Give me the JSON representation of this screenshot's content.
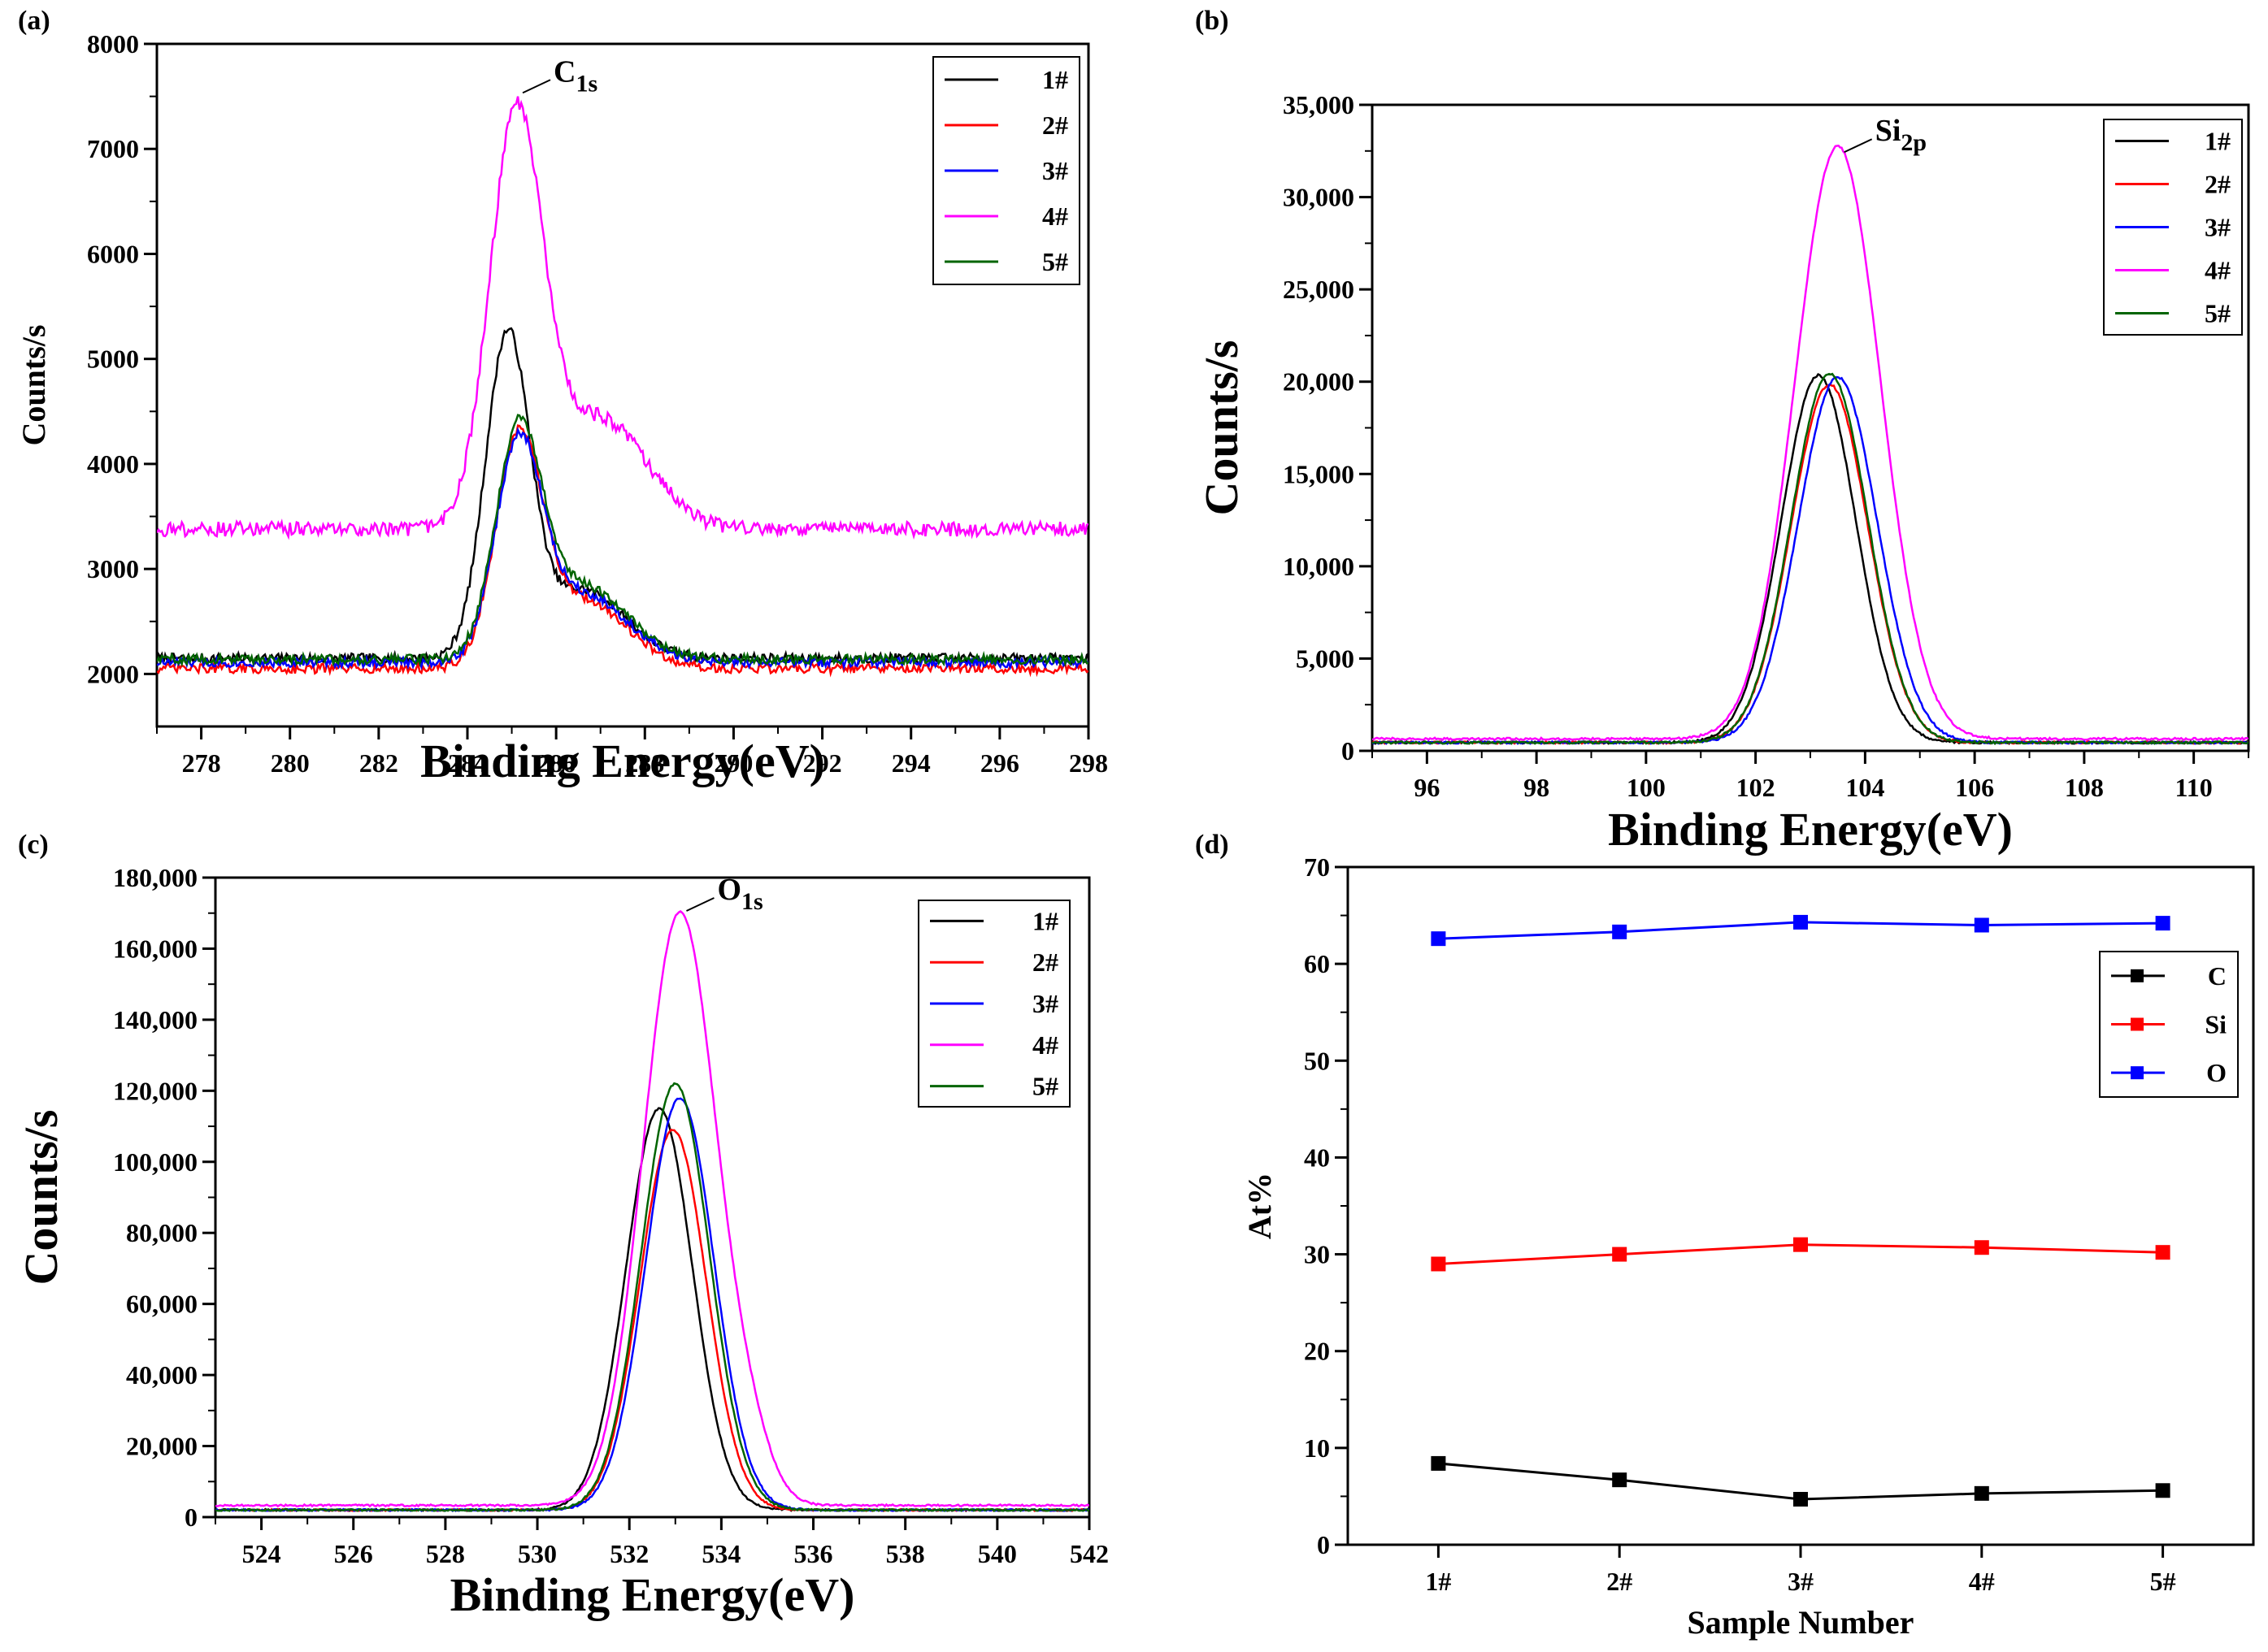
{
  "chart_data": [
    {
      "panel": "(a)",
      "type": "line",
      "xlabel": "Binding Energy(eV)",
      "ylabel": "Counts/s",
      "xlim": [
        277,
        298
      ],
      "ylim": [
        1500,
        8000
      ],
      "xticks": [
        278,
        280,
        282,
        284,
        286,
        288,
        290,
        292,
        294,
        296,
        298
      ],
      "yticks": [
        2000,
        3000,
        4000,
        5000,
        6000,
        7000,
        8000
      ],
      "ytick_labels": [
        "2000",
        "3000",
        "4000",
        "5000",
        "6000",
        "7000",
        "8000"
      ],
      "annotation": {
        "label": "C",
        "sub": "1s",
        "x": 285.1,
        "y": 7580
      },
      "series": [
        {
          "name": "1#",
          "color": "#000000",
          "baseline": 2150,
          "noise": 45,
          "peaks": [
            {
              "c": 284.9,
              "a": 3000,
              "w": 0.5
            },
            {
              "c": 286.6,
              "a": 650,
              "w": 0.95
            }
          ]
        },
        {
          "name": "2#",
          "color": "#ff0000",
          "baseline": 2050,
          "noise": 45,
          "peaks": [
            {
              "c": 285.15,
              "a": 2050,
              "w": 0.52
            },
            {
              "c": 286.6,
              "a": 650,
              "w": 1.0
            }
          ]
        },
        {
          "name": "3#",
          "color": "#0000ff",
          "baseline": 2110,
          "noise": 45,
          "peaks": [
            {
              "c": 285.15,
              "a": 1950,
              "w": 0.52
            },
            {
              "c": 286.6,
              "a": 650,
              "w": 1.0
            }
          ]
        },
        {
          "name": "4#",
          "color": "#ff00ff",
          "baseline": 3380,
          "noise": 70,
          "peaks": [
            {
              "c": 285.1,
              "a": 3850,
              "w": 0.6
            },
            {
              "c": 287.0,
              "a": 1050,
              "w": 1.05
            }
          ]
        },
        {
          "name": "5#",
          "color": "#006400",
          "baseline": 2140,
          "noise": 45,
          "peaks": [
            {
              "c": 285.15,
              "a": 2050,
              "w": 0.52
            },
            {
              "c": 286.6,
              "a": 700,
              "w": 1.0
            }
          ]
        }
      ]
    },
    {
      "panel": "(b)",
      "type": "line",
      "xlabel": "Binding Energy(eV)",
      "ylabel": "Counts/s",
      "xlim": [
        95,
        111
      ],
      "ylim": [
        0,
        35000
      ],
      "xticks": [
        96,
        98,
        100,
        102,
        104,
        106,
        108,
        110
      ],
      "yticks": [
        0,
        5000,
        10000,
        15000,
        20000,
        25000,
        30000,
        35000
      ],
      "ytick_labels": [
        "0",
        "5,000",
        "10,000",
        "15,000",
        "20,000",
        "25,000",
        "30,000",
        "35,000"
      ],
      "annotation": {
        "label": "Si",
        "sub": "2p",
        "x": 103.5,
        "y": 32700
      },
      "series": [
        {
          "name": "1#",
          "color": "#000000",
          "baseline": 450,
          "noise": 60,
          "peaks": [
            {
              "c": 103.15,
              "a": 19900,
              "w": 0.68
            }
          ]
        },
        {
          "name": "2#",
          "color": "#ff0000",
          "baseline": 450,
          "noise": 60,
          "peaks": [
            {
              "c": 103.35,
              "a": 19400,
              "w": 0.7
            }
          ]
        },
        {
          "name": "3#",
          "color": "#0000ff",
          "baseline": 450,
          "noise": 60,
          "peaks": [
            {
              "c": 103.5,
              "a": 19800,
              "w": 0.72
            }
          ]
        },
        {
          "name": "4#",
          "color": "#ff00ff",
          "baseline": 650,
          "noise": 60,
          "peaks": [
            {
              "c": 103.5,
              "a": 32100,
              "w": 0.78
            }
          ]
        },
        {
          "name": "5#",
          "color": "#006400",
          "baseline": 450,
          "noise": 60,
          "peaks": [
            {
              "c": 103.35,
              "a": 20000,
              "w": 0.7
            }
          ]
        }
      ]
    },
    {
      "panel": "(c)",
      "type": "line",
      "xlabel": "Binding Energy(eV)",
      "ylabel": "Counts/s",
      "xlim": [
        523,
        542
      ],
      "ylim": [
        0,
        180000
      ],
      "xticks": [
        524,
        526,
        528,
        530,
        532,
        534,
        536,
        538,
        540,
        542
      ],
      "yticks": [
        0,
        20000,
        40000,
        60000,
        80000,
        100000,
        120000,
        140000,
        160000,
        180000
      ],
      "ytick_labels": [
        "0",
        "20,000",
        "40,000",
        "60,000",
        "80,000",
        "100,000",
        "120,000",
        "140,000",
        "160,000",
        "180,000"
      ],
      "annotation": {
        "label": "O",
        "sub": "1s",
        "x": 533.1,
        "y": 172000
      },
      "series": [
        {
          "name": "1#",
          "color": "#000000",
          "baseline": 2000,
          "noise": 250,
          "peaks": [
            {
              "c": 532.65,
              "a": 113000,
              "w": 0.72
            }
          ]
        },
        {
          "name": "2#",
          "color": "#ff0000",
          "baseline": 2000,
          "noise": 250,
          "peaks": [
            {
              "c": 532.95,
              "a": 107000,
              "w": 0.72
            }
          ]
        },
        {
          "name": "3#",
          "color": "#0000ff",
          "baseline": 2000,
          "noise": 250,
          "peaks": [
            {
              "c": 533.1,
              "a": 116000,
              "w": 0.74
            }
          ]
        },
        {
          "name": "4#",
          "color": "#ff00ff",
          "baseline": 3300,
          "noise": 250,
          "peaks": [
            {
              "c": 533.1,
              "a": 167000,
              "w": 0.8
            },
            {
              "c": 534.6,
              "a": 12000,
              "w": 0.5
            }
          ]
        },
        {
          "name": "5#",
          "color": "#006400",
          "baseline": 2000,
          "noise": 250,
          "peaks": [
            {
              "c": 533.0,
              "a": 120000,
              "w": 0.74
            }
          ]
        }
      ]
    },
    {
      "panel": "(d)",
      "type": "line",
      "xlabel": "Sample Number",
      "ylabel": "At%",
      "categories": [
        "1#",
        "2#",
        "3#",
        "4#",
        "5#"
      ],
      "ylim": [
        0,
        70
      ],
      "yticks": [
        0,
        10,
        20,
        30,
        40,
        50,
        60,
        70
      ],
      "ytick_labels": [
        "0",
        "10",
        "20",
        "30",
        "40",
        "50",
        "60",
        "70"
      ],
      "series": [
        {
          "name": "C",
          "color": "#000000",
          "values": [
            8.4,
            6.7,
            4.7,
            5.3,
            5.6
          ]
        },
        {
          "name": "Si",
          "color": "#ff0000",
          "values": [
            29.0,
            30.0,
            31.0,
            30.7,
            30.2
          ]
        },
        {
          "name": "O",
          "color": "#0000ff",
          "values": [
            62.6,
            63.3,
            64.3,
            64.0,
            64.2
          ]
        }
      ]
    }
  ]
}
